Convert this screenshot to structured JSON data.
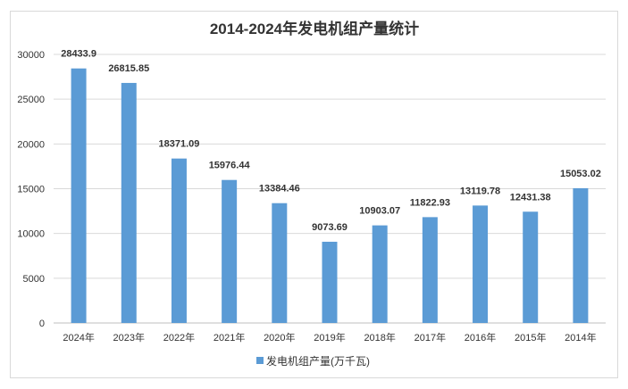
{
  "chart_data": {
    "type": "bar",
    "title": "2014-2024年发电机组产量统计",
    "xlabel": "",
    "ylabel": "",
    "categories": [
      "2024年",
      "2023年",
      "2022年",
      "2021年",
      "2020年",
      "2019年",
      "2018年",
      "2017年",
      "2016年",
      "2015年",
      "2014年"
    ],
    "series": [
      {
        "name": "发电机组产量(万千瓦)",
        "color": "#5b9bd5",
        "values": [
          28433.9,
          26815.85,
          18371.09,
          15976.44,
          13384.46,
          9073.69,
          10903.07,
          11822.93,
          13119.78,
          12431.38,
          15053.02
        ],
        "labels": [
          "28433.9",
          "26815.85",
          "18371.09",
          "15976.44",
          "13384.46",
          "9073.69",
          "10903.07",
          "11822.93",
          "13119.78",
          "12431.38",
          "15053.02"
        ]
      }
    ],
    "ylim": [
      0,
      30000
    ],
    "yticks": [
      "0",
      "5000",
      "10000",
      "15000",
      "20000",
      "25000",
      "30000"
    ],
    "grid": true,
    "legend_position": "bottom"
  }
}
